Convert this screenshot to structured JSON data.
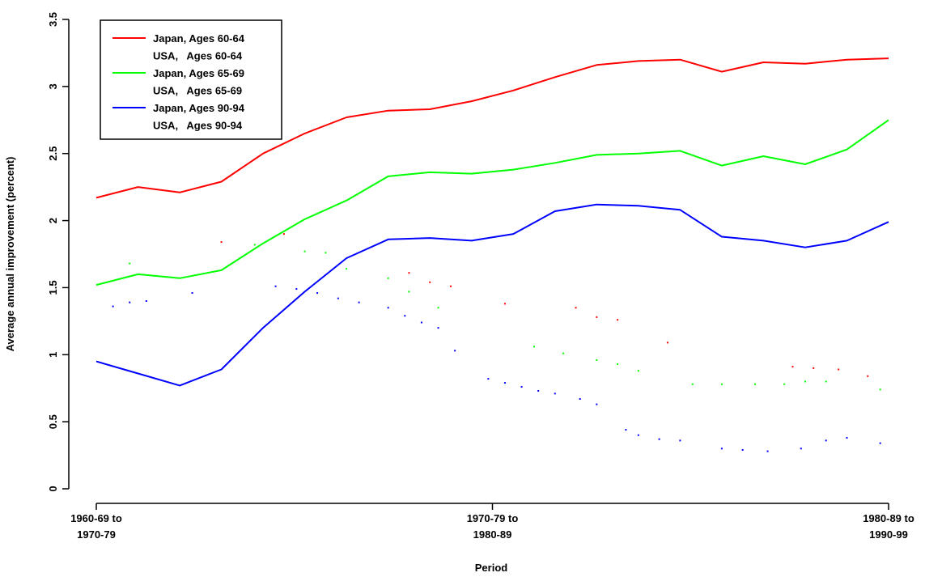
{
  "chart_data": {
    "type": "line",
    "xlabel": "Period",
    "ylabel": "Average annual improvement (percent)",
    "xlim": [
      0,
      19
    ],
    "ylim": [
      0,
      3.5
    ],
    "y_ticks": [
      "0",
      "0.5",
      "1",
      "1.5",
      "2",
      "2.5",
      "3",
      "3.5"
    ],
    "x_ticks": [
      {
        "x": 0,
        "line1": "1960-69 to",
        "line2": "1970-79"
      },
      {
        "x": 9.5,
        "line1": "1970-79 to",
        "line2": "1980-89"
      },
      {
        "x": 19,
        "line1": "1980-89 to",
        "line2": "1990-99"
      }
    ],
    "legend": [
      {
        "label": "Japan, Ages 60-64",
        "color": "#ff0000",
        "style": "solid"
      },
      {
        "label": "USA,   Ages 60-64",
        "color": "#ff0000",
        "style": "dotted"
      },
      {
        "label": "Japan, Ages 65-69",
        "color": "#00ff00",
        "style": "solid"
      },
      {
        "label": "USA,   Ages 65-69",
        "color": "#00ff00",
        "style": "dotted"
      },
      {
        "label": "Japan, Ages 90-94",
        "color": "#0000ff",
        "style": "solid"
      },
      {
        "label": "USA,   Ages 90-94",
        "color": "#0000ff",
        "style": "dotted"
      }
    ],
    "legend_position": "top-left",
    "series": [
      {
        "color": "#ff0000",
        "style": "solid",
        "x": [
          0,
          1,
          2,
          3,
          4,
          5,
          6,
          7,
          8,
          9,
          10,
          11,
          12,
          13,
          14,
          15,
          16,
          17,
          18,
          19
        ],
        "values": [
          2.17,
          2.25,
          2.21,
          2.29,
          2.5,
          2.65,
          2.77,
          2.82,
          2.83,
          2.89,
          2.97,
          3.07,
          3.16,
          3.19,
          3.2,
          3.11,
          3.18,
          3.17,
          3.2,
          3.21
        ]
      },
      {
        "color": "#ff0000",
        "style": "dotted",
        "x": [
          3,
          4.5,
          7.5,
          8,
          8.5,
          9.8,
          11.5,
          12,
          12.5,
          13.7,
          16.7,
          17.2,
          17.8,
          18.5
        ],
        "values": [
          1.84,
          1.9,
          1.61,
          1.54,
          1.51,
          1.38,
          1.35,
          1.28,
          1.26,
          1.09,
          0.91,
          0.9,
          0.89,
          0.84
        ]
      },
      {
        "color": "#00ff00",
        "style": "solid",
        "x": [
          0,
          1,
          2,
          3,
          4,
          5,
          6,
          7,
          8,
          9,
          10,
          11,
          12,
          13,
          14,
          15,
          16,
          17,
          18,
          19
        ],
        "values": [
          1.52,
          1.6,
          1.57,
          1.63,
          1.83,
          2.01,
          2.15,
          2.33,
          2.36,
          2.35,
          2.38,
          2.43,
          2.49,
          2.5,
          2.52,
          2.41,
          2.48,
          2.42,
          2.53,
          2.75
        ]
      },
      {
        "color": "#00ff00",
        "style": "dotted",
        "x": [
          0.8,
          3.8,
          5,
          5.5,
          6,
          7,
          7.5,
          8.2,
          10.5,
          11.2,
          12,
          12.5,
          13,
          14.3,
          15,
          15.8,
          16.5,
          17,
          17.5,
          18.8
        ],
        "values": [
          1.68,
          1.82,
          1.77,
          1.76,
          1.64,
          1.57,
          1.47,
          1.35,
          1.06,
          1.01,
          0.96,
          0.93,
          0.88,
          0.78,
          0.78,
          0.78,
          0.78,
          0.8,
          0.8,
          0.74
        ]
      },
      {
        "color": "#0000ff",
        "style": "solid",
        "x": [
          0,
          1,
          2,
          3,
          4,
          5,
          6,
          7,
          8,
          9,
          10,
          11,
          12,
          13,
          14,
          15,
          16,
          17,
          18,
          19
        ],
        "values": [
          0.95,
          0.86,
          0.77,
          0.89,
          1.2,
          1.47,
          1.72,
          1.86,
          1.87,
          1.85,
          1.9,
          2.07,
          2.12,
          2.11,
          2.08,
          1.88,
          1.85,
          1.8,
          1.85,
          1.99
        ]
      },
      {
        "color": "#0000ff",
        "style": "dotted",
        "x": [
          0.4,
          0.8,
          1.2,
          2.3,
          4.3,
          4.8,
          5.3,
          5.8,
          6.3,
          7,
          7.4,
          7.8,
          8.2,
          8.6,
          9.4,
          9.8,
          10.2,
          10.6,
          11,
          11.6,
          12,
          12.7,
          13,
          13.5,
          14,
          15,
          15.5,
          16.1,
          16.9,
          17.5,
          18,
          18.8
        ],
        "values": [
          1.36,
          1.39,
          1.4,
          1.46,
          1.51,
          1.49,
          1.46,
          1.42,
          1.39,
          1.35,
          1.29,
          1.24,
          1.2,
          1.03,
          0.82,
          0.79,
          0.76,
          0.73,
          0.71,
          0.67,
          0.63,
          0.44,
          0.4,
          0.37,
          0.36,
          0.3,
          0.29,
          0.28,
          0.3,
          0.36,
          0.38,
          0.34
        ]
      }
    ]
  }
}
